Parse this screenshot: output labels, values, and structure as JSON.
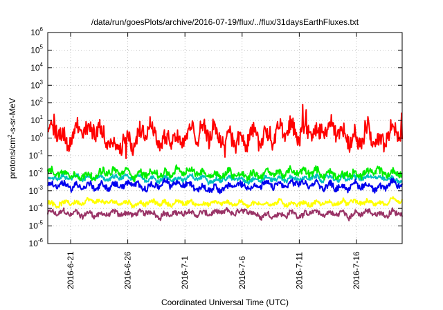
{
  "chart_data": {
    "type": "line",
    "title": "/data/run/goesPlots/archive/2016-07-19/flux/../flux/31daysEarthFluxes.txt",
    "xlabel": "Coordinated Universal Time (UTC)",
    "ylabel": {
      "prefix": "protons/cm",
      "superscript": "2",
      "suffix": "-s-sr-MeV"
    },
    "yscale": "log",
    "ylim": [
      1e-06,
      1000000
    ],
    "y_ticks": [
      {
        "base": "10",
        "exp": "-6"
      },
      {
        "base": "10",
        "exp": "-5"
      },
      {
        "base": "10",
        "exp": "-4"
      },
      {
        "base": "10",
        "exp": "-3"
      },
      {
        "base": "10",
        "exp": "-2"
      },
      {
        "base": "10",
        "exp": "-1"
      },
      {
        "base": "10",
        "exp": "0"
      },
      {
        "base": "10",
        "exp": "1"
      },
      {
        "base": "10",
        "exp": "2"
      },
      {
        "base": "10",
        "exp": "3"
      },
      {
        "base": "10",
        "exp": "4"
      },
      {
        "base": "10",
        "exp": "5"
      },
      {
        "base": "10",
        "exp": "6"
      }
    ],
    "xlim": [
      "2016-06-19",
      "2016-07-20"
    ],
    "x_ticks": [
      "2016-6-21",
      "2016-6-26",
      "2016-7-1",
      "2016-7-6",
      "2016-7-11",
      "2016-7-16"
    ],
    "grid": true,
    "series": [
      {
        "color": "#ff0000",
        "typical": 1.5,
        "spread_decades": 1.0,
        "spikes": true
      },
      {
        "color": "#00ee00",
        "typical": 0.01,
        "spread_decades": 0.4
      },
      {
        "color": "#00bfbf",
        "typical": 0.005,
        "spread_decades": 0.25
      },
      {
        "color": "#0000ee",
        "typical": 0.002,
        "spread_decades": 0.35
      },
      {
        "color": "#ffff00",
        "typical": 0.0002,
        "spread_decades": 0.25
      },
      {
        "color": "#993366",
        "typical": 5e-05,
        "spread_decades": 0.3
      }
    ]
  }
}
